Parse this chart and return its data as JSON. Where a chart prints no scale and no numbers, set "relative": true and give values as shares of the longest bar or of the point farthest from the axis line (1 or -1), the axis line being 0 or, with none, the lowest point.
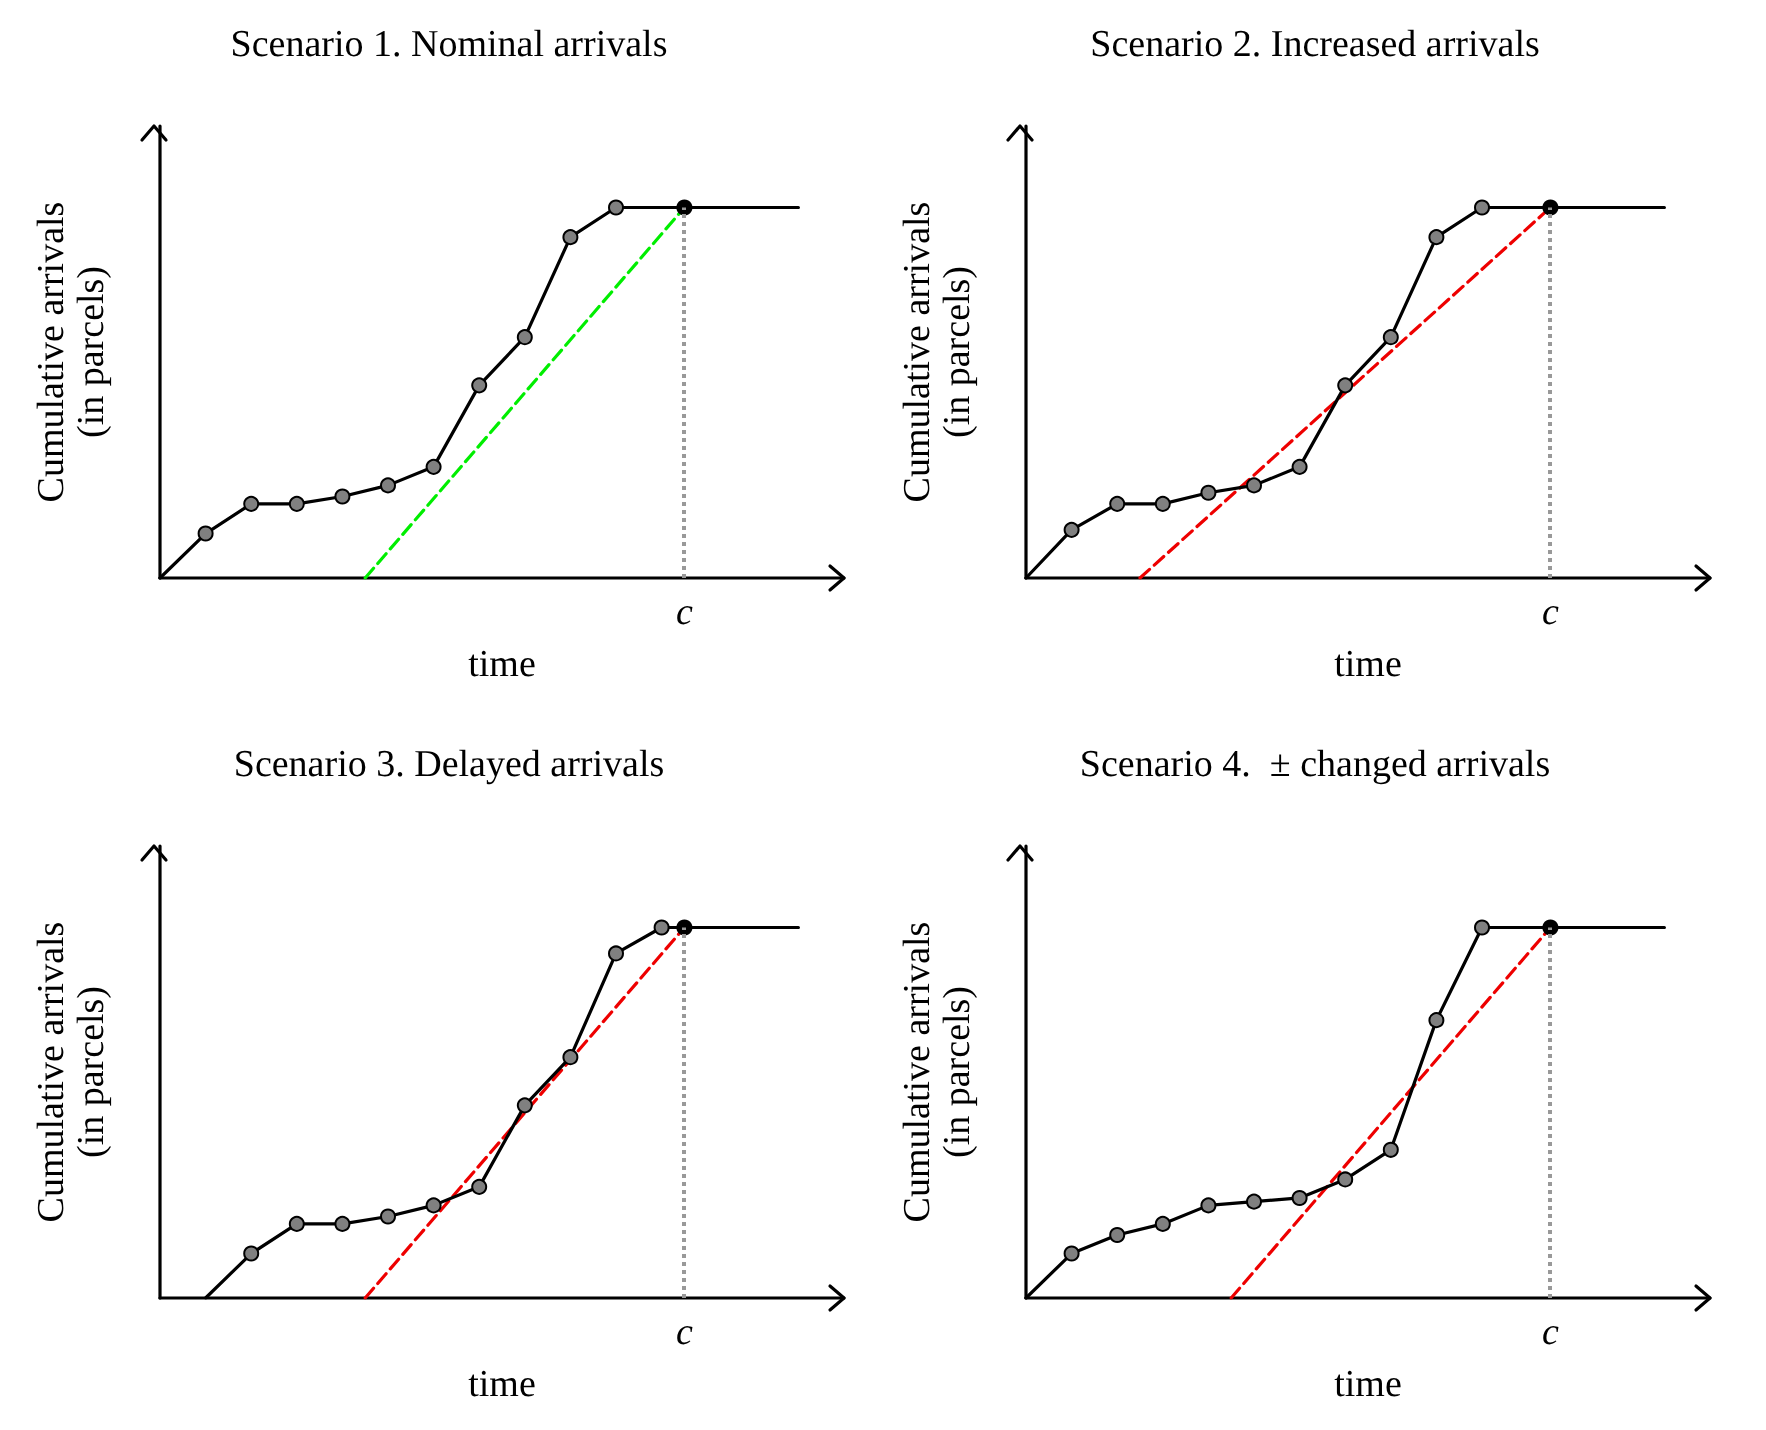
{
  "chart_data": [
    {
      "type": "line",
      "title": "Scenario 1. Nominal arrivals",
      "xlabel": "time",
      "ylabel": "Cumulative arrivals\n(in parcels)",
      "relative": true,
      "tick_labels": false,
      "grid": false,
      "categories": [
        null,
        null,
        null,
        null,
        null,
        null,
        null,
        null,
        null,
        null,
        null,
        null,
        null,
        null,
        null,
        null,
        null,
        null,
        null,
        null,
        null,
        null,
        null,
        null,
        null,
        null,
        null,
        null,
        null,
        null,
        null
      ],
      "series": [
        {
          "color": "#000000",
          "marker": "circle",
          "line_style": "solid",
          "values": [
            0,
            null,
            0.12,
            null,
            0.2,
            null,
            0.2,
            null,
            0.22,
            null,
            0.25,
            null,
            0.3,
            null,
            0.52,
            null,
            0.65,
            null,
            0.92,
            null,
            1,
            null,
            null,
            1,
            null,
            null,
            null,
            null,
            1,
            null,
            null
          ],
          "colors": [
            null,
            null,
            "#808080",
            null,
            "#808080",
            null,
            "#808080",
            null,
            "#808080",
            null,
            "#808080",
            null,
            "#808080",
            null,
            "#808080",
            null,
            "#808080",
            null,
            "#808080",
            null,
            "#808080",
            null,
            null,
            "#000000",
            null,
            null,
            null,
            null,
            null,
            null,
            null
          ]
        },
        {
          "color": "#00ee00",
          "marker": "none",
          "line_style": "dashed",
          "values": [
            null,
            null,
            null,
            null,
            null,
            null,
            null,
            null,
            null,
            0,
            null,
            null,
            null,
            null,
            null,
            null,
            null,
            null,
            null,
            null,
            null,
            null,
            null,
            1,
            null,
            null,
            null,
            null,
            null,
            null,
            null
          ]
        }
      ],
      "annotations": [
        "c"
      ]
    },
    {
      "type": "line",
      "title": "Scenario 2. Increased arrivals",
      "xlabel": "time",
      "ylabel": "Cumulative arrivals\n(in parcels)",
      "relative": true,
      "tick_labels": false,
      "grid": false,
      "categories": [
        null,
        null,
        null,
        null,
        null,
        null,
        null,
        null,
        null,
        null,
        null,
        null,
        null,
        null,
        null,
        null,
        null,
        null,
        null,
        null,
        null,
        null,
        null,
        null,
        null,
        null,
        null,
        null,
        null,
        null,
        null
      ],
      "series": [
        {
          "color": "#000000",
          "marker": "circle",
          "line_style": "solid",
          "values": [
            0,
            null,
            0.13,
            null,
            0.2,
            null,
            0.2,
            null,
            0.23,
            null,
            0.25,
            null,
            0.3,
            null,
            0.52,
            null,
            0.65,
            null,
            0.92,
            null,
            1,
            null,
            null,
            1,
            null,
            null,
            null,
            null,
            1,
            null,
            null
          ],
          "colors": [
            null,
            null,
            "#808080",
            null,
            "#808080",
            null,
            "#808080",
            null,
            "#808080",
            null,
            "#808080",
            null,
            "#808080",
            null,
            "#808080",
            null,
            "#808080",
            null,
            "#808080",
            null,
            "#808080",
            null,
            null,
            "#000000",
            null,
            null,
            null,
            null,
            null,
            null,
            null
          ]
        },
        {
          "color": "#ee0000",
          "marker": "none",
          "line_style": "dashed",
          "values": [
            null,
            null,
            null,
            null,
            null,
            0,
            null,
            null,
            null,
            null,
            null,
            null,
            null,
            null,
            null,
            null,
            null,
            null,
            null,
            null,
            null,
            null,
            null,
            1,
            null,
            null,
            null,
            null,
            null,
            null,
            null
          ]
        }
      ],
      "annotations": [
        "c"
      ]
    },
    {
      "type": "line",
      "title": "Scenario 3. Delayed arrivals",
      "xlabel": "time",
      "ylabel": "Cumulative arrivals\n(in parcels)",
      "relative": true,
      "tick_labels": false,
      "grid": false,
      "categories": [
        null,
        null,
        null,
        null,
        null,
        null,
        null,
        null,
        null,
        null,
        null,
        null,
        null,
        null,
        null,
        null,
        null,
        null,
        null,
        null,
        null,
        null,
        null,
        null,
        null,
        null,
        null,
        null,
        null,
        null,
        null
      ],
      "series": [
        {
          "color": "#000000",
          "marker": "circle",
          "line_style": "solid",
          "values": [
            null,
            null,
            0,
            null,
            0.12,
            null,
            0.2,
            null,
            0.2,
            null,
            0.22,
            null,
            0.25,
            null,
            0.3,
            null,
            0.52,
            null,
            0.65,
            null,
            0.93,
            null,
            1,
            1,
            null,
            null,
            null,
            null,
            1,
            null,
            null
          ],
          "colors": [
            null,
            null,
            null,
            null,
            "#808080",
            null,
            "#808080",
            null,
            "#808080",
            null,
            "#808080",
            null,
            "#808080",
            null,
            "#808080",
            null,
            "#808080",
            null,
            "#808080",
            null,
            "#808080",
            null,
            "#808080",
            "#000000",
            null,
            null,
            null,
            null,
            null,
            null,
            null
          ]
        },
        {
          "color": "#ee0000",
          "marker": "none",
          "line_style": "dashed",
          "values": [
            null,
            null,
            null,
            null,
            null,
            null,
            null,
            null,
            null,
            0,
            null,
            null,
            null,
            null,
            null,
            null,
            null,
            null,
            null,
            null,
            null,
            null,
            null,
            1,
            null,
            null,
            null,
            null,
            null,
            null,
            null
          ]
        }
      ],
      "annotations": [
        "c"
      ]
    },
    {
      "type": "line",
      "title": "Scenario 4.  ± changed arrivals",
      "xlabel": "time",
      "ylabel": "Cumulative arrivals\n(in parcels)",
      "relative": true,
      "tick_labels": false,
      "grid": false,
      "categories": [
        null,
        null,
        null,
        null,
        null,
        null,
        null,
        null,
        null,
        null,
        null,
        null,
        null,
        null,
        null,
        null,
        null,
        null,
        null,
        null,
        null,
        null,
        null,
        null,
        null,
        null,
        null,
        null,
        null,
        null,
        null
      ],
      "series": [
        {
          "color": "#000000",
          "marker": "circle",
          "line_style": "solid",
          "values": [
            0,
            null,
            0.12,
            null,
            0.17,
            null,
            0.2,
            null,
            0.25,
            null,
            0.26,
            null,
            0.27,
            null,
            0.32,
            null,
            0.4,
            null,
            0.75,
            null,
            1,
            null,
            null,
            1,
            null,
            null,
            null,
            null,
            1,
            null,
            null
          ],
          "colors": [
            null,
            null,
            "#808080",
            null,
            "#808080",
            null,
            "#808080",
            null,
            "#808080",
            null,
            "#808080",
            null,
            "#808080",
            null,
            "#808080",
            null,
            "#808080",
            null,
            "#808080",
            null,
            "#808080",
            null,
            null,
            "#000000",
            null,
            null,
            null,
            null,
            null,
            null,
            null
          ]
        },
        {
          "color": "#ee0000",
          "marker": "none",
          "line_style": "dashed",
          "values": [
            null,
            null,
            null,
            null,
            null,
            null,
            null,
            null,
            null,
            0,
            null,
            null,
            null,
            null,
            null,
            null,
            null,
            null,
            null,
            null,
            null,
            null,
            null,
            1,
            null,
            null,
            null,
            null,
            null,
            null,
            null
          ]
        }
      ],
      "annotations": [
        "c"
      ]
    }
  ]
}
